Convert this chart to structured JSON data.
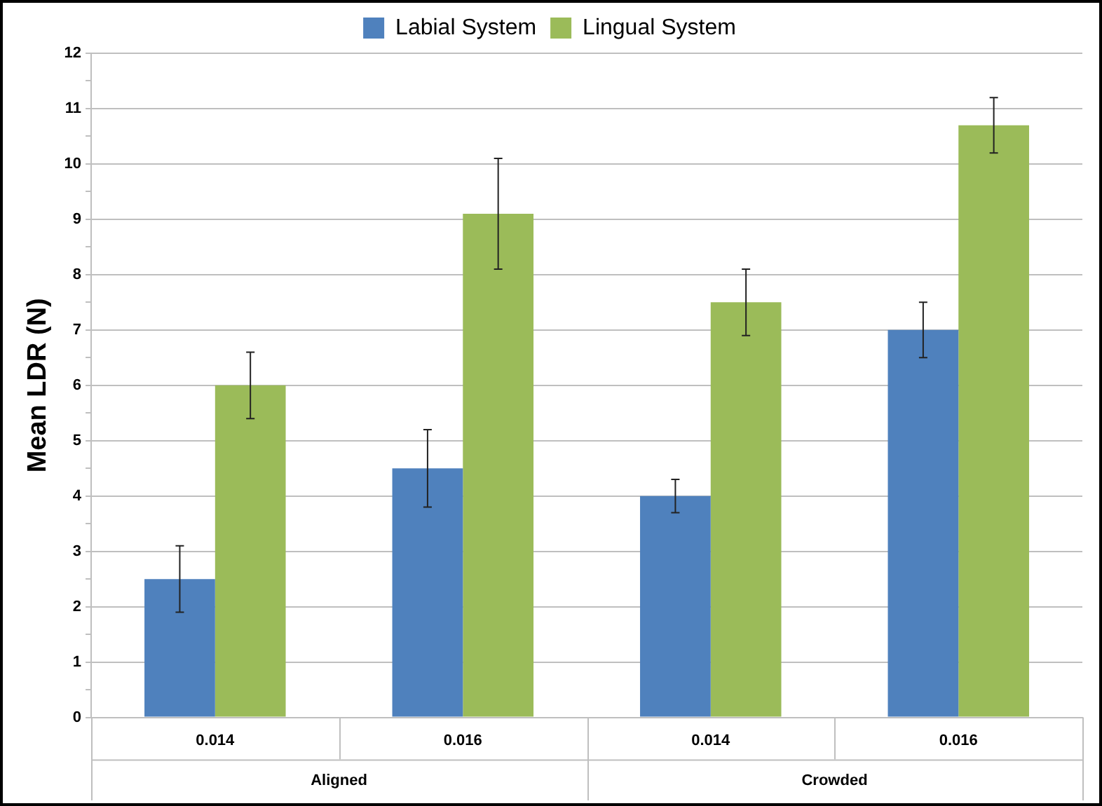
{
  "chart_data": {
    "type": "bar",
    "ylabel": "Mean LDR (N)",
    "categories": [
      "0.014",
      "0.016",
      "0.014",
      "0.016"
    ],
    "annotations": [
      "Aligned",
      "Crowded"
    ],
    "series": [
      {
        "name": "Labial System",
        "color": "#4f81bd",
        "values": [
          2.5,
          4.5,
          4.0,
          7.0
        ],
        "errors": [
          0.6,
          0.7,
          0.3,
          0.5
        ]
      },
      {
        "name": "Lingual System",
        "color": "#9bbb59",
        "values": [
          6.0,
          9.1,
          7.5,
          10.7
        ],
        "errors": [
          0.6,
          1.0,
          0.6,
          0.5
        ]
      }
    ],
    "ylim": [
      0,
      12
    ],
    "yticks": [
      0,
      {
        "value": 0.5,
        "label": null
      },
      1,
      {
        "value": 1.5,
        "label": null
      },
      2,
      {
        "value": 2.5,
        "label": null
      },
      3,
      {
        "value": 3.5,
        "label": null
      },
      4,
      {
        "value": 4.5,
        "label": null
      },
      5,
      {
        "value": 5.5,
        "label": null
      },
      6,
      {
        "value": 6.5,
        "label": null
      },
      7,
      {
        "value": 7.5,
        "label": null
      },
      8,
      {
        "value": 8.5,
        "label": null
      },
      9,
      {
        "value": 9.5,
        "label": null
      },
      10,
      {
        "value": 10.5,
        "label": null
      },
      11,
      {
        "value": 11.5,
        "label": null
      },
      12
    ],
    "grid": "y",
    "legend": "top"
  }
}
